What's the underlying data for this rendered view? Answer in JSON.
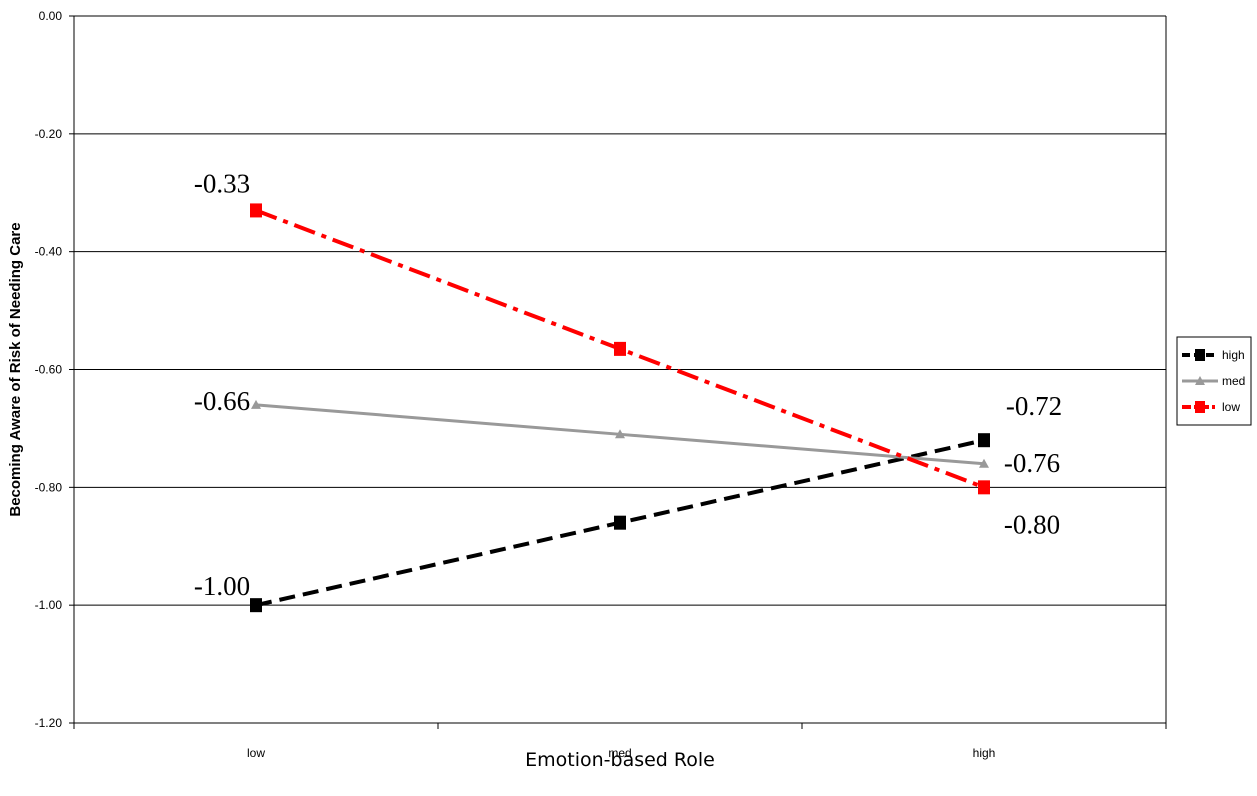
{
  "chart_data": {
    "type": "line",
    "categories": [
      "low",
      "med",
      "high"
    ],
    "xlabel": "Emotion-based Role",
    "ylabel": "Becoming Aware of Risk of Needing Care",
    "ylim": [
      -1.2,
      0.0
    ],
    "yticks": [
      "0.00",
      "-0.20",
      "-0.40",
      "-0.60",
      "-0.80",
      "-1.00",
      "-1.20"
    ],
    "grid": true,
    "legend_position": "right",
    "series": [
      {
        "name": "high",
        "values": [
          -1.0,
          -0.86,
          -0.72
        ],
        "color": "#000000",
        "dash": "dashed",
        "marker": "square",
        "labels": [
          "-1.00",
          "",
          "-0.72"
        ]
      },
      {
        "name": "med",
        "values": [
          -0.66,
          -0.71,
          -0.76
        ],
        "color": "#999999",
        "dash": "solid",
        "marker": "triangle",
        "labels": [
          "-0.66",
          "",
          "-0.76"
        ]
      },
      {
        "name": "low",
        "values": [
          -0.33,
          -0.565,
          -0.8
        ],
        "color": "#ff0000",
        "dash": "dashdot",
        "marker": "square",
        "labels": [
          "-0.33",
          "",
          "-0.80"
        ]
      }
    ]
  }
}
